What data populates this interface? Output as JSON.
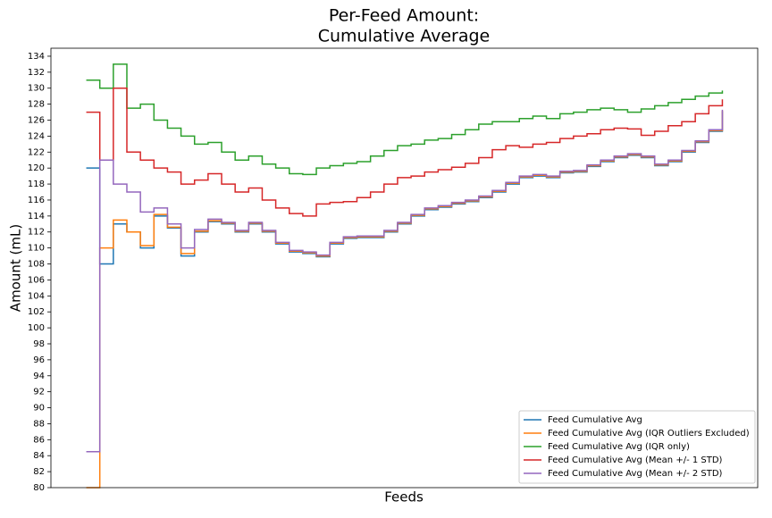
{
  "chart_data": {
    "type": "step",
    "title": [
      "Per-Feed Amount:",
      "Cumulative Average"
    ],
    "xlabel": "Feeds",
    "ylabel": "Amount (mL)",
    "ylim": [
      80,
      135
    ],
    "yticks": [
      80,
      82,
      84,
      86,
      88,
      90,
      92,
      94,
      96,
      98,
      100,
      102,
      104,
      106,
      108,
      110,
      112,
      114,
      116,
      118,
      120,
      122,
      124,
      126,
      128,
      130,
      132,
      134
    ],
    "legend": "lower right",
    "series": [
      {
        "name": "Feed Cumulative Avg",
        "color": "#1f77b4",
        "values": [
          120,
          108,
          113,
          112,
          110,
          114,
          112.5,
          109,
          112,
          113.3,
          113,
          112,
          113,
          112,
          110.5,
          109.5,
          109.3,
          108.9,
          110.5,
          111.2,
          111.3,
          111.3,
          112,
          113,
          114,
          114.8,
          115.1,
          115.5,
          115.8,
          116.3,
          117,
          118,
          118.8,
          119,
          118.8,
          119.4,
          119.5,
          120.2,
          120.8,
          121.3,
          121.6,
          121.3,
          120.3,
          120.8,
          122,
          123.2,
          124.6,
          127.1
        ]
      },
      {
        "name": "Feed Cumulative Avg (IQR Outliers Excluded)",
        "color": "#ff7f0e",
        "values": [
          80,
          110,
          113.5,
          112,
          110.3,
          114.2,
          112.6,
          109.3,
          112.1,
          113.4,
          113.1,
          112.1,
          113.1,
          112.1,
          110.6,
          109.6,
          109.4,
          109,
          110.6,
          111.3,
          111.4,
          111.4,
          112.1,
          113.1,
          114.1,
          114.9,
          115.2,
          115.6,
          115.9,
          116.4,
          117.1,
          118.1,
          118.9,
          119.1,
          118.9,
          119.5,
          119.6,
          120.3,
          120.9,
          121.4,
          121.7,
          121.4,
          120.4,
          120.9,
          122.1,
          123.3,
          124.7,
          127.2
        ]
      },
      {
        "name": "Feed Cumulative Avg (IQR only)",
        "color": "#2ca02c",
        "values": [
          131,
          130,
          133,
          127.5,
          128,
          126,
          125,
          124,
          123,
          123.2,
          122,
          121,
          121.5,
          120.5,
          120,
          119.3,
          119.2,
          120,
          120.3,
          120.6,
          120.8,
          121.5,
          122.2,
          122.8,
          123,
          123.5,
          123.7,
          124.2,
          124.8,
          125.5,
          125.8,
          125.8,
          126.2,
          126.5,
          126.2,
          126.8,
          127,
          127.3,
          127.5,
          127.3,
          127,
          127.4,
          127.8,
          128.2,
          128.6,
          129,
          129.4,
          129.7
        ]
      },
      {
        "name": "Feed Cumulative Avg (Mean +/- 1 STD)",
        "color": "#d62728",
        "values": [
          127,
          121,
          130,
          122,
          121,
          120,
          119.5,
          118,
          118.5,
          119.3,
          118,
          117,
          117.5,
          116,
          115,
          114.3,
          114,
          115.5,
          115.7,
          115.8,
          116.3,
          117,
          118,
          118.8,
          119,
          119.5,
          119.8,
          120.1,
          120.6,
          121.3,
          122.3,
          122.8,
          122.6,
          123,
          123.2,
          123.7,
          124,
          124.3,
          124.8,
          125,
          124.9,
          124.1,
          124.6,
          125.3,
          125.8,
          126.8,
          127.8,
          128.6
        ]
      },
      {
        "name": "Feed Cumulative Avg (Mean +/- 2 STD)",
        "color": "#9467bd",
        "values": [
          84.5,
          121,
          118,
          117,
          114.5,
          115,
          113,
          110,
          112.3,
          113.6,
          113.2,
          112.2,
          113.2,
          112.2,
          110.7,
          109.7,
          109.5,
          109.1,
          110.7,
          111.4,
          111.5,
          111.5,
          112.2,
          113.2,
          114.2,
          115,
          115.3,
          115.7,
          116,
          116.5,
          117.2,
          118.2,
          119,
          119.2,
          119,
          119.6,
          119.7,
          120.4,
          121,
          121.5,
          121.8,
          121.5,
          120.5,
          121,
          122.2,
          123.4,
          124.8,
          127.3
        ]
      }
    ]
  }
}
